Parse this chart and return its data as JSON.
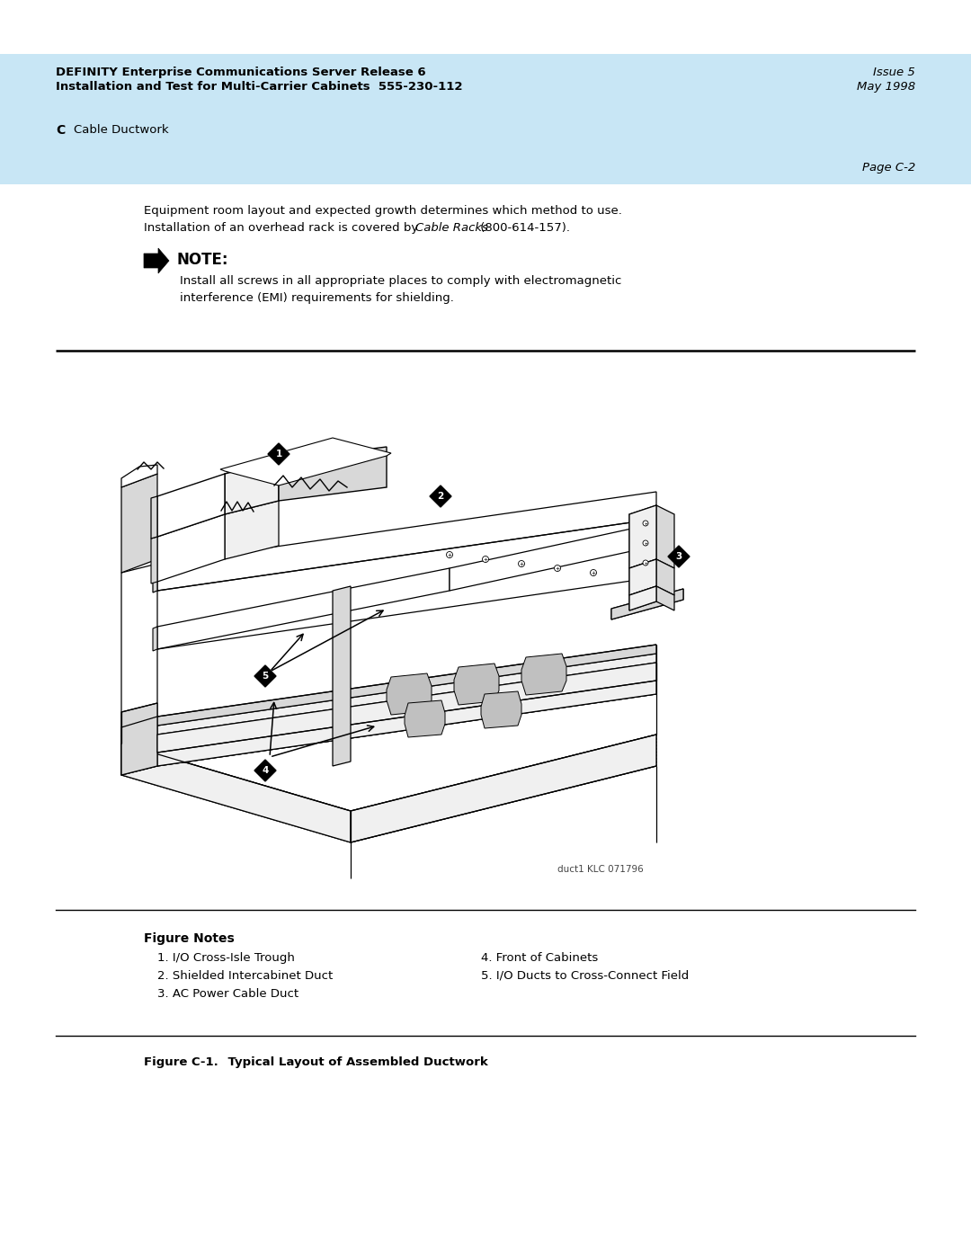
{
  "bg_color": "#ffffff",
  "header_bg": "#c8e6f5",
  "header_line1": "DEFINITY Enterprise Communications Server Release 6",
  "header_line2": "Installation and Test for Multi-Carrier Cabinets  555-230-112",
  "header_right1": "Issue 5",
  "header_right2": "May 1998",
  "section_label": "C",
  "section_title": "Cable Ductwork",
  "page_label": "Page C-2",
  "body_text1": "Equipment room layout and expected growth determines which method to use.",
  "body_text2_pre": "Installation of an overhead rack is covered by ",
  "body_text2_italic": "Cable Racks",
  "body_text2_post": " (800-614-157).",
  "note_label": "NOTE:",
  "note_text1": "Install all screws in all appropriate places to comply with electromagnetic",
  "note_text2": "interference (EMI) requirements for shielding.",
  "figure_notes_title": "Figure Notes",
  "figure_notes_left": [
    "1. I/O Cross-Isle Trough",
    "2. Shielded Intercabinet Duct",
    "3. AC Power Cable Duct"
  ],
  "figure_notes_right": [
    "4. Front of Cabinets",
    "5. I/O Ducts to Cross-Connect Field"
  ],
  "figure_caption_bold": "Figure C-1.",
  "figure_caption_rest": "    Typical Layout of Assembled Ductwork",
  "watermark": "duct1 KLC 071796"
}
